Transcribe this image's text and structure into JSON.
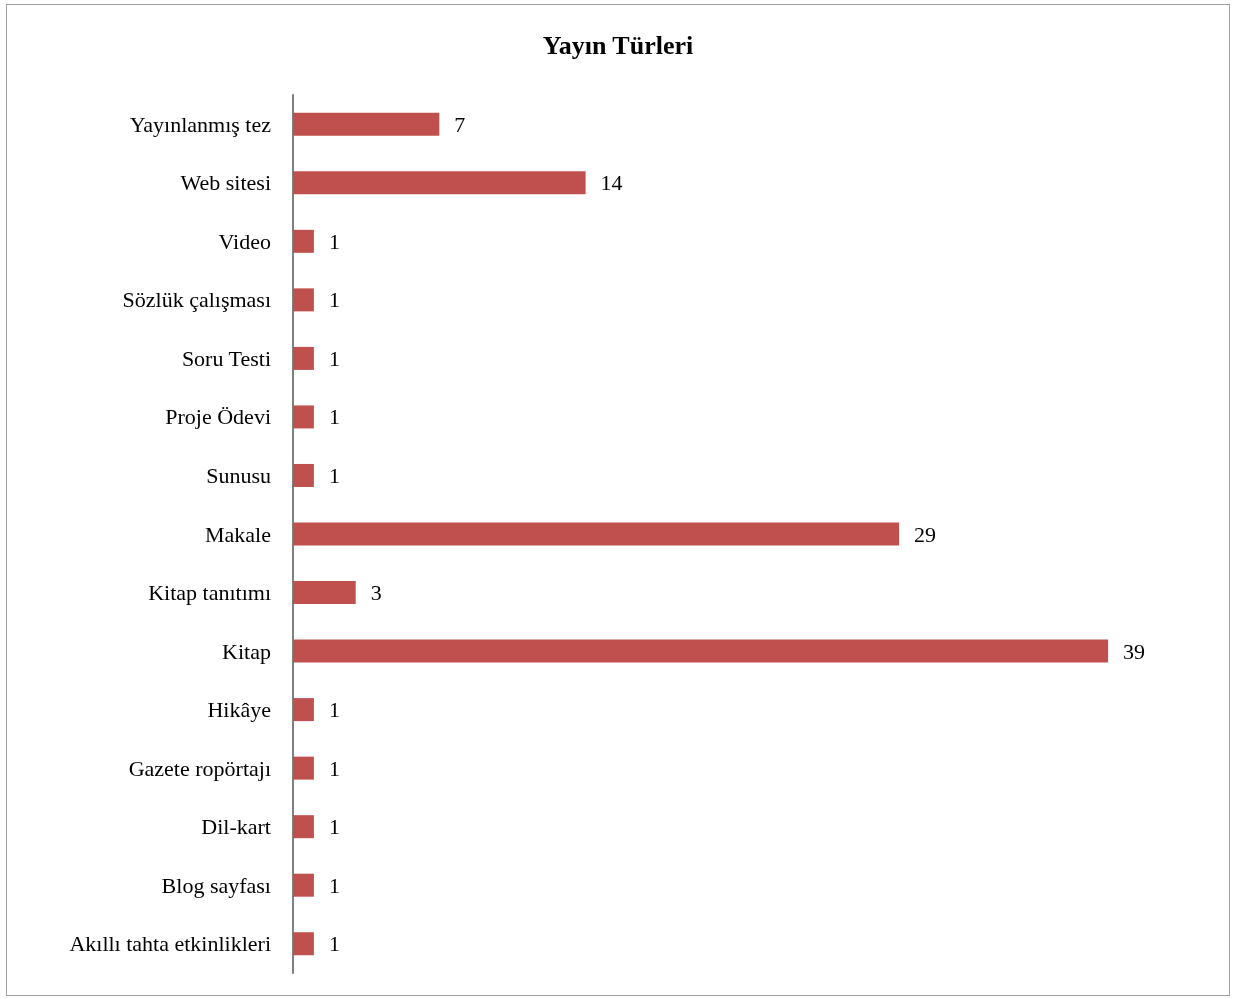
{
  "chart_data": {
    "type": "bar",
    "orientation": "horizontal",
    "title": "Yayın Türleri",
    "categories": [
      "Yayınlanmış tez",
      "Web sitesi",
      "Video",
      "Sözlük çalışması",
      "Soru Testi",
      "Proje Ödevi",
      "Sunusu",
      "Makale",
      "Kitap tanıtımı",
      "Kitap",
      "Hikâye",
      "Gazete ropörtajı",
      "Dil-kart",
      "Blog sayfası",
      "Akıllı tahta etkinlikleri"
    ],
    "values": [
      7,
      14,
      1,
      1,
      1,
      1,
      1,
      29,
      3,
      39,
      1,
      1,
      1,
      1,
      1
    ],
    "color": "#c0504d",
    "data_labels": true
  }
}
